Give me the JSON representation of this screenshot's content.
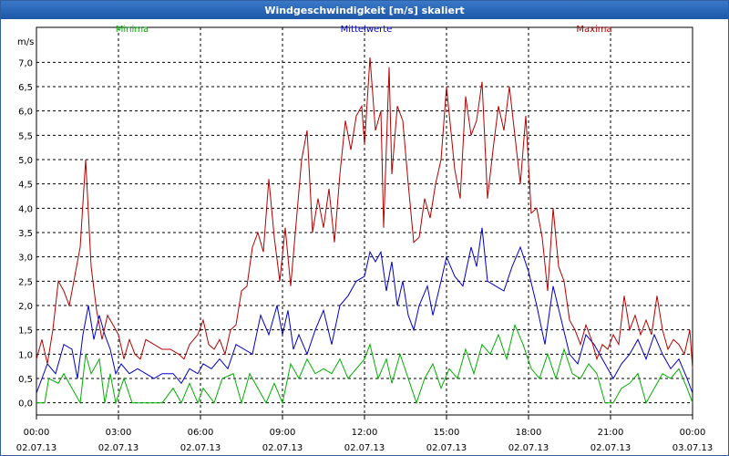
{
  "window": {
    "title": "Windgeschwindigkeit [m/s] skaliert"
  },
  "chart_data": {
    "type": "line",
    "title": "Windgeschwindigkeit [m/s] skaliert",
    "ylabel": "m/s",
    "xlabel": "",
    "ylim": [
      -0.25,
      7.25
    ],
    "yticks": [
      "0,0",
      "0,5",
      "1,0",
      "1,5",
      "2,0",
      "2,5",
      "3,0",
      "3,5",
      "4,0",
      "4,5",
      "5,0",
      "5,5",
      "6,0",
      "6,5",
      "7,0"
    ],
    "xlim": [
      0,
      24
    ],
    "xticks": [
      {
        "time": "00:00",
        "date": "02.07.13"
      },
      {
        "time": "03:00",
        "date": "02.07.13"
      },
      {
        "time": "06:00",
        "date": "02.07.13"
      },
      {
        "time": "09:00",
        "date": "02.07.13"
      },
      {
        "time": "12:00",
        "date": "02.07.13"
      },
      {
        "time": "15:00",
        "date": "02.07.13"
      },
      {
        "time": "18:00",
        "date": "02.07.13"
      },
      {
        "time": "21:00",
        "date": "02.07.13"
      },
      {
        "time": "00:00",
        "date": "03.07.13"
      }
    ],
    "grid": true,
    "legend_placement": "top",
    "series": [
      {
        "name": "Minima",
        "color": "#00b000",
        "points": [
          [
            0.0,
            0.0
          ],
          [
            0.3,
            0.0
          ],
          [
            0.45,
            0.5
          ],
          [
            0.8,
            0.4
          ],
          [
            1.0,
            0.6
          ],
          [
            1.3,
            0.3
          ],
          [
            1.6,
            0.0
          ],
          [
            1.8,
            1.0
          ],
          [
            2.0,
            0.6
          ],
          [
            2.3,
            0.9
          ],
          [
            2.5,
            0.0
          ],
          [
            2.7,
            0.6
          ],
          [
            2.9,
            0.0
          ],
          [
            3.2,
            0.5
          ],
          [
            3.5,
            0.0
          ],
          [
            3.8,
            0.0
          ],
          [
            4.2,
            0.0
          ],
          [
            4.6,
            0.0
          ],
          [
            5.0,
            0.3
          ],
          [
            5.3,
            0.0
          ],
          [
            5.6,
            0.4
          ],
          [
            5.9,
            0.0
          ],
          [
            6.1,
            0.3
          ],
          [
            6.5,
            0.0
          ],
          [
            6.8,
            0.5
          ],
          [
            7.2,
            0.6
          ],
          [
            7.5,
            0.0
          ],
          [
            7.8,
            0.6
          ],
          [
            8.1,
            0.3
          ],
          [
            8.4,
            0.0
          ],
          [
            8.7,
            0.4
          ],
          [
            9.0,
            0.0
          ],
          [
            9.3,
            0.8
          ],
          [
            9.6,
            0.5
          ],
          [
            9.9,
            0.9
          ],
          [
            10.2,
            0.6
          ],
          [
            10.5,
            0.7
          ],
          [
            10.8,
            0.6
          ],
          [
            11.1,
            0.9
          ],
          [
            11.4,
            0.5
          ],
          [
            11.7,
            0.7
          ],
          [
            12.0,
            0.9
          ],
          [
            12.2,
            1.2
          ],
          [
            12.5,
            0.5
          ],
          [
            12.8,
            0.9
          ],
          [
            13.0,
            0.4
          ],
          [
            13.3,
            1.0
          ],
          [
            13.6,
            0.5
          ],
          [
            13.9,
            0.0
          ],
          [
            14.2,
            0.5
          ],
          [
            14.5,
            0.8
          ],
          [
            14.8,
            0.3
          ],
          [
            15.1,
            0.7
          ],
          [
            15.4,
            0.5
          ],
          [
            15.7,
            1.1
          ],
          [
            16.0,
            0.6
          ],
          [
            16.3,
            1.2
          ],
          [
            16.6,
            1.0
          ],
          [
            16.9,
            1.4
          ],
          [
            17.2,
            0.9
          ],
          [
            17.5,
            1.6
          ],
          [
            17.8,
            1.2
          ],
          [
            18.1,
            0.7
          ],
          [
            18.4,
            0.5
          ],
          [
            18.7,
            1.0
          ],
          [
            19.0,
            0.5
          ],
          [
            19.3,
            1.1
          ],
          [
            19.6,
            0.6
          ],
          [
            19.9,
            0.5
          ],
          [
            20.2,
            0.8
          ],
          [
            20.5,
            0.6
          ],
          [
            20.8,
            0.0
          ],
          [
            21.1,
            0.0
          ],
          [
            21.4,
            0.3
          ],
          [
            21.7,
            0.4
          ],
          [
            22.0,
            0.6
          ],
          [
            22.3,
            0.0
          ],
          [
            22.6,
            0.3
          ],
          [
            22.9,
            0.6
          ],
          [
            23.2,
            0.5
          ],
          [
            23.5,
            0.7
          ],
          [
            23.8,
            0.3
          ],
          [
            24.0,
            0.0
          ]
        ]
      },
      {
        "name": "Mittelwerte",
        "color": "#0000c8",
        "points": [
          [
            0.0,
            0.2
          ],
          [
            0.2,
            0.5
          ],
          [
            0.4,
            0.8
          ],
          [
            0.7,
            0.6
          ],
          [
            1.0,
            1.2
          ],
          [
            1.3,
            1.1
          ],
          [
            1.5,
            0.5
          ],
          [
            1.7,
            1.4
          ],
          [
            1.9,
            2.0
          ],
          [
            2.1,
            1.3
          ],
          [
            2.3,
            1.8
          ],
          [
            2.5,
            1.4
          ],
          [
            2.7,
            1.1
          ],
          [
            2.9,
            0.6
          ],
          [
            3.1,
            0.8
          ],
          [
            3.4,
            0.6
          ],
          [
            3.7,
            0.7
          ],
          [
            4.0,
            0.6
          ],
          [
            4.3,
            0.5
          ],
          [
            4.6,
            0.6
          ],
          [
            5.0,
            0.6
          ],
          [
            5.3,
            0.4
          ],
          [
            5.6,
            0.7
          ],
          [
            5.9,
            0.6
          ],
          [
            6.1,
            0.8
          ],
          [
            6.4,
            0.7
          ],
          [
            6.7,
            0.9
          ],
          [
            7.0,
            0.7
          ],
          [
            7.3,
            1.2
          ],
          [
            7.6,
            1.1
          ],
          [
            7.9,
            1.0
          ],
          [
            8.2,
            1.8
          ],
          [
            8.5,
            1.4
          ],
          [
            8.8,
            2.0
          ],
          [
            9.0,
            1.4
          ],
          [
            9.2,
            1.9
          ],
          [
            9.4,
            1.1
          ],
          [
            9.6,
            1.4
          ],
          [
            9.9,
            1.0
          ],
          [
            10.2,
            1.5
          ],
          [
            10.5,
            1.9
          ],
          [
            10.8,
            1.2
          ],
          [
            11.1,
            2.0
          ],
          [
            11.4,
            2.2
          ],
          [
            11.7,
            2.5
          ],
          [
            12.0,
            2.6
          ],
          [
            12.2,
            3.1
          ],
          [
            12.4,
            2.9
          ],
          [
            12.6,
            3.1
          ],
          [
            12.8,
            2.3
          ],
          [
            13.0,
            2.9
          ],
          [
            13.2,
            2.0
          ],
          [
            13.4,
            2.5
          ],
          [
            13.6,
            1.8
          ],
          [
            13.8,
            1.5
          ],
          [
            14.0,
            2.0
          ],
          [
            14.3,
            2.4
          ],
          [
            14.5,
            1.8
          ],
          [
            14.8,
            2.5
          ],
          [
            15.0,
            3.0
          ],
          [
            15.3,
            2.6
          ],
          [
            15.6,
            2.4
          ],
          [
            15.9,
            3.2
          ],
          [
            16.1,
            2.8
          ],
          [
            16.3,
            3.6
          ],
          [
            16.5,
            2.5
          ],
          [
            16.8,
            2.4
          ],
          [
            17.1,
            2.3
          ],
          [
            17.4,
            2.8
          ],
          [
            17.7,
            3.2
          ],
          [
            18.0,
            2.7
          ],
          [
            18.3,
            2.0
          ],
          [
            18.6,
            1.2
          ],
          [
            18.9,
            2.4
          ],
          [
            19.2,
            1.7
          ],
          [
            19.5,
            1.0
          ],
          [
            19.8,
            0.8
          ],
          [
            20.1,
            1.4
          ],
          [
            20.4,
            1.2
          ],
          [
            20.8,
            0.8
          ],
          [
            21.1,
            0.5
          ],
          [
            21.4,
            0.8
          ],
          [
            21.7,
            1.0
          ],
          [
            22.0,
            1.3
          ],
          [
            22.3,
            0.9
          ],
          [
            22.6,
            1.4
          ],
          [
            22.9,
            1.0
          ],
          [
            23.2,
            0.7
          ],
          [
            23.5,
            0.9
          ],
          [
            23.8,
            0.5
          ],
          [
            24.0,
            0.2
          ]
        ]
      },
      {
        "name": "Maxima",
        "color": "#b40000",
        "points": [
          [
            0.0,
            0.9
          ],
          [
            0.2,
            1.3
          ],
          [
            0.4,
            0.8
          ],
          [
            0.6,
            1.5
          ],
          [
            0.8,
            2.5
          ],
          [
            1.0,
            2.3
          ],
          [
            1.2,
            2.0
          ],
          [
            1.4,
            2.6
          ],
          [
            1.6,
            3.2
          ],
          [
            1.8,
            5.0
          ],
          [
            2.0,
            2.8
          ],
          [
            2.2,
            1.9
          ],
          [
            2.4,
            1.3
          ],
          [
            2.6,
            1.8
          ],
          [
            2.8,
            1.6
          ],
          [
            3.0,
            1.4
          ],
          [
            3.2,
            0.9
          ],
          [
            3.4,
            1.3
          ],
          [
            3.6,
            1.0
          ],
          [
            3.8,
            0.9
          ],
          [
            4.0,
            1.3
          ],
          [
            4.3,
            1.2
          ],
          [
            4.6,
            1.1
          ],
          [
            4.9,
            1.1
          ],
          [
            5.2,
            1.0
          ],
          [
            5.4,
            0.9
          ],
          [
            5.6,
            1.2
          ],
          [
            5.9,
            1.4
          ],
          [
            6.1,
            1.7
          ],
          [
            6.3,
            1.2
          ],
          [
            6.5,
            1.1
          ],
          [
            6.7,
            1.3
          ],
          [
            6.9,
            1.0
          ],
          [
            7.1,
            1.5
          ],
          [
            7.3,
            1.6
          ],
          [
            7.5,
            2.3
          ],
          [
            7.7,
            2.4
          ],
          [
            7.9,
            3.2
          ],
          [
            8.1,
            3.5
          ],
          [
            8.3,
            3.1
          ],
          [
            8.5,
            4.6
          ],
          [
            8.7,
            3.4
          ],
          [
            8.9,
            2.5
          ],
          [
            9.1,
            3.6
          ],
          [
            9.3,
            2.4
          ],
          [
            9.5,
            3.7
          ],
          [
            9.7,
            5.0
          ],
          [
            9.9,
            5.6
          ],
          [
            10.1,
            3.5
          ],
          [
            10.3,
            4.2
          ],
          [
            10.5,
            3.6
          ],
          [
            10.7,
            4.4
          ],
          [
            10.9,
            3.3
          ],
          [
            11.1,
            4.7
          ],
          [
            11.3,
            5.8
          ],
          [
            11.5,
            5.2
          ],
          [
            11.7,
            5.9
          ],
          [
            11.9,
            6.1
          ],
          [
            12.0,
            5.3
          ],
          [
            12.2,
            7.1
          ],
          [
            12.4,
            5.6
          ],
          [
            12.6,
            6.0
          ],
          [
            12.7,
            3.6
          ],
          [
            12.9,
            6.9
          ],
          [
            13.0,
            4.7
          ],
          [
            13.2,
            6.1
          ],
          [
            13.4,
            5.8
          ],
          [
            13.6,
            4.5
          ],
          [
            13.8,
            3.3
          ],
          [
            14.0,
            3.4
          ],
          [
            14.2,
            4.2
          ],
          [
            14.4,
            3.8
          ],
          [
            14.6,
            4.5
          ],
          [
            14.8,
            5.0
          ],
          [
            15.0,
            6.5
          ],
          [
            15.3,
            4.8
          ],
          [
            15.5,
            4.2
          ],
          [
            15.7,
            6.3
          ],
          [
            15.9,
            5.5
          ],
          [
            16.1,
            5.8
          ],
          [
            16.3,
            6.6
          ],
          [
            16.5,
            4.2
          ],
          [
            16.7,
            5.2
          ],
          [
            16.9,
            6.1
          ],
          [
            17.1,
            5.6
          ],
          [
            17.3,
            6.5
          ],
          [
            17.5,
            5.5
          ],
          [
            17.7,
            4.5
          ],
          [
            17.9,
            5.9
          ],
          [
            18.1,
            3.9
          ],
          [
            18.3,
            4.0
          ],
          [
            18.5,
            3.4
          ],
          [
            18.7,
            2.3
          ],
          [
            18.9,
            4.0
          ],
          [
            19.1,
            2.8
          ],
          [
            19.3,
            2.5
          ],
          [
            19.5,
            1.7
          ],
          [
            19.7,
            1.5
          ],
          [
            19.9,
            1.2
          ],
          [
            20.1,
            1.6
          ],
          [
            20.3,
            1.3
          ],
          [
            20.5,
            0.9
          ],
          [
            20.7,
            1.2
          ],
          [
            20.9,
            1.1
          ],
          [
            21.1,
            1.4
          ],
          [
            21.3,
            1.2
          ],
          [
            21.5,
            2.2
          ],
          [
            21.7,
            1.5
          ],
          [
            21.9,
            1.8
          ],
          [
            22.1,
            1.4
          ],
          [
            22.3,
            1.7
          ],
          [
            22.5,
            1.4
          ],
          [
            22.7,
            2.2
          ],
          [
            22.9,
            1.5
          ],
          [
            23.1,
            1.1
          ],
          [
            23.3,
            1.3
          ],
          [
            23.5,
            1.2
          ],
          [
            23.7,
            1.0
          ],
          [
            23.9,
            1.5
          ],
          [
            24.0,
            0.7
          ]
        ]
      }
    ]
  }
}
